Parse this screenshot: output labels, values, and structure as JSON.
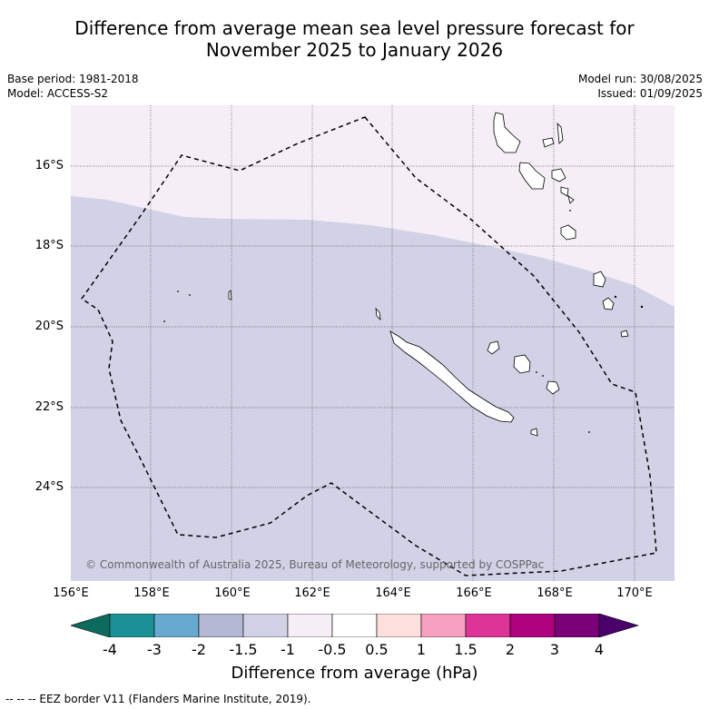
{
  "title_line1": "Difference from average mean sea level pressure forecast for",
  "title_line2": "November 2025 to January 2026",
  "meta_left": {
    "base_period": "Base period: 1981-2018",
    "model": "Model: ACCESS-S2"
  },
  "meta_right": {
    "model_run": "Model run: 30/08/2025",
    "issued": "Issued: 01/09/2025"
  },
  "map": {
    "lat_labels": [
      "16°S",
      "18°S",
      "20°S",
      "22°S",
      "24°S"
    ],
    "lon_labels": [
      "156°E",
      "158°E",
      "160°E",
      "162°E",
      "164°E",
      "166°E",
      "168°E",
      "170°E"
    ],
    "copyright": "© Commonwealth of Australia 2025, Bureau of Meteorology, supported by COSPPac",
    "colors": {
      "light_purple": "#f5eef6",
      "lavender": "#d1d2e6",
      "grid": "#555555"
    }
  },
  "colorbar": {
    "label": "Difference from average (hPa)",
    "ticks": [
      "-4",
      "-3",
      "-2",
      "-1.5",
      "-1",
      "-0.5",
      "0.5",
      "1",
      "1.5",
      "2",
      "3",
      "4"
    ],
    "colors": [
      "#0d6b5e",
      "#1b9196",
      "#67a9cf",
      "#b3b8d4",
      "#d1d2e6",
      "#f5eef6",
      "#ffffff",
      "#fde0dd",
      "#f8a0bf",
      "#dd3497",
      "#ae017e",
      "#7a0177",
      "#49006a"
    ]
  },
  "footnote": "-- -- -- EEZ border V11 (Flanders Marine Institute, 2019)."
}
